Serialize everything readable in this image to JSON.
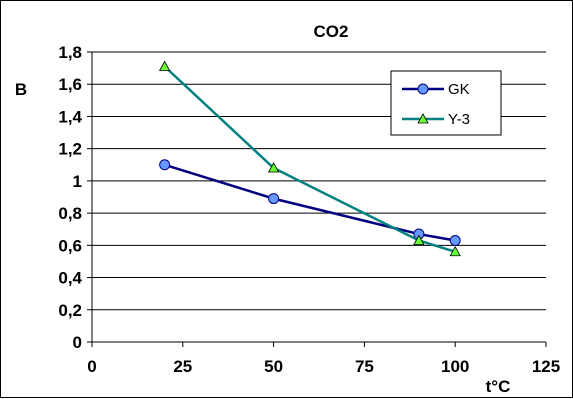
{
  "chart_data": {
    "type": "line",
    "title": "CO2",
    "xlabel": "t°C",
    "ylabel": "B",
    "xlim": [
      0,
      125
    ],
    "ylim": [
      0,
      1.8
    ],
    "xticks": [
      0,
      25,
      50,
      75,
      100,
      125
    ],
    "xtick_labels": [
      "0",
      "25",
      "50",
      "75",
      "100",
      "125"
    ],
    "yticks": [
      0,
      0.2,
      0.4,
      0.6,
      0.8,
      1,
      1.2,
      1.4,
      1.6,
      1.8
    ],
    "ytick_labels": [
      "0",
      "0,2",
      "0,4",
      "0,6",
      "0,8",
      "1",
      "1,2",
      "1,4",
      "1,6",
      "1,8"
    ],
    "grid": "horizontal",
    "legend_position": "top-right",
    "series": [
      {
        "name": "GK",
        "color": "#000080",
        "marker": "circle",
        "marker_fill": "#6699ff",
        "points": [
          {
            "x": 20,
            "y": 1.1
          },
          {
            "x": 50,
            "y": 0.89
          },
          {
            "x": 90,
            "y": 0.67
          },
          {
            "x": 100,
            "y": 0.63
          }
        ]
      },
      {
        "name": "Y-3",
        "color": "#008080",
        "marker": "triangle",
        "marker_fill": "#66ff33",
        "points": [
          {
            "x": 20,
            "y": 1.71
          },
          {
            "x": 50,
            "y": 1.08
          },
          {
            "x": 90,
            "y": 0.63
          },
          {
            "x": 100,
            "y": 0.56
          }
        ]
      }
    ]
  }
}
